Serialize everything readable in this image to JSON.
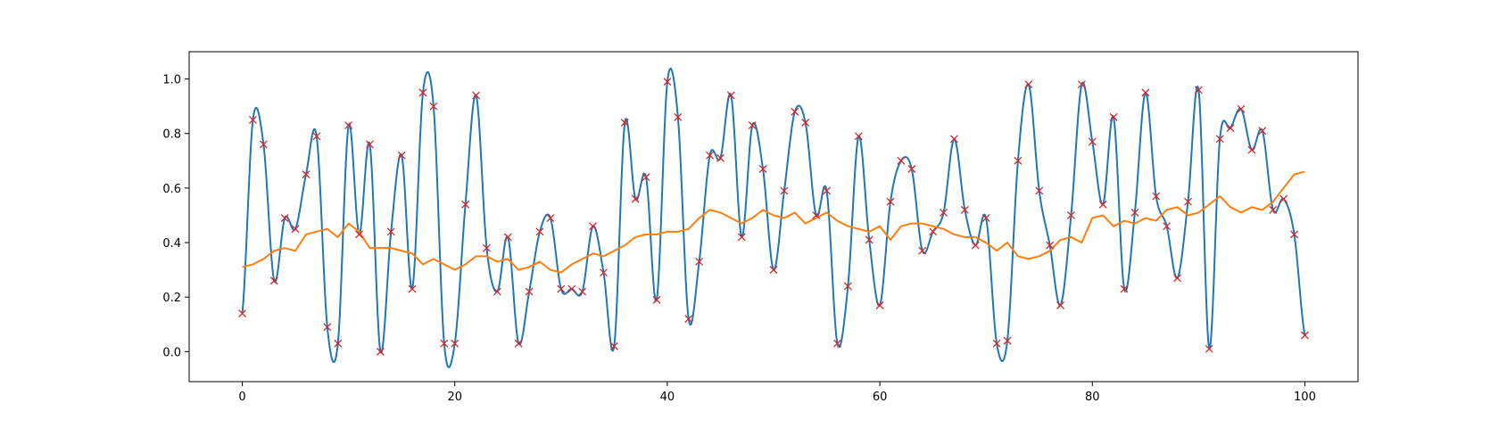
{
  "chart_data": {
    "type": "line",
    "title": "",
    "xlabel": "",
    "ylabel": "",
    "xlim": [
      -5,
      105
    ],
    "ylim": [
      -0.11,
      1.1
    ],
    "xticks": [
      0,
      20,
      40,
      60,
      80,
      100
    ],
    "xtick_labels": [
      "0",
      "20",
      "40",
      "60",
      "80",
      "100"
    ],
    "yticks": [
      0.0,
      0.2,
      0.4,
      0.6,
      0.8,
      1.0
    ],
    "ytick_labels": [
      "0.0",
      "0.2",
      "0.4",
      "0.6",
      "0.8",
      "1.0"
    ],
    "grid": false,
    "legend": "none",
    "colors": {
      "interpolated": "#1f77b4",
      "moving_average": "#ff7f0e",
      "samples": "#d62728"
    },
    "samples": {
      "marker": "x",
      "x": [
        0,
        1,
        2,
        3,
        4,
        5,
        6,
        7,
        8,
        9,
        10,
        11,
        12,
        13,
        14,
        15,
        16,
        17,
        18,
        19,
        20,
        21,
        22,
        23,
        24,
        25,
        26,
        27,
        28,
        29,
        30,
        31,
        32,
        33,
        34,
        35,
        36,
        37,
        38,
        39,
        40,
        41,
        42,
        43,
        44,
        45,
        46,
        47,
        48,
        49,
        50,
        51,
        52,
        53,
        54,
        55,
        56,
        57,
        58,
        59,
        60,
        61,
        62,
        63,
        64,
        65,
        66,
        67,
        68,
        69,
        70,
        71,
        72,
        73,
        74,
        75,
        76,
        77,
        78,
        79,
        80,
        81,
        82,
        83,
        84,
        85,
        86,
        87,
        88,
        89,
        90,
        91,
        92,
        93,
        94,
        95,
        96,
        97,
        98,
        99,
        100
      ],
      "y": [
        0.14,
        0.85,
        0.76,
        0.26,
        0.49,
        0.45,
        0.65,
        0.79,
        0.09,
        0.03,
        0.83,
        0.43,
        0.76,
        0.0,
        0.44,
        0.72,
        0.23,
        0.95,
        0.9,
        0.03,
        0.03,
        0.54,
        0.94,
        0.38,
        0.22,
        0.42,
        0.03,
        0.22,
        0.44,
        0.49,
        0.23,
        0.23,
        0.22,
        0.46,
        0.29,
        0.02,
        0.84,
        0.56,
        0.64,
        0.19,
        0.99,
        0.86,
        0.12,
        0.33,
        0.72,
        0.71,
        0.94,
        0.42,
        0.83,
        0.67,
        0.3,
        0.59,
        0.88,
        0.84,
        0.5,
        0.59,
        0.03,
        0.24,
        0.79,
        0.41,
        0.17,
        0.55,
        0.7,
        0.67,
        0.37,
        0.44,
        0.51,
        0.78,
        0.52,
        0.39,
        0.49,
        0.03,
        0.04,
        0.7,
        0.98,
        0.59,
        0.39,
        0.17,
        0.5,
        0.98,
        0.77,
        0.54,
        0.86,
        0.23,
        0.51,
        0.95,
        0.57,
        0.46,
        0.27,
        0.55,
        0.96,
        0.01,
        0.78,
        0.82,
        0.89,
        0.74,
        0.81,
        0.52,
        0.56,
        0.43,
        0.06
      ]
    },
    "moving_average": {
      "x": [
        0,
        1,
        2,
        3,
        4,
        5,
        6,
        7,
        8,
        9,
        10,
        11,
        12,
        13,
        14,
        15,
        16,
        17,
        18,
        19,
        20,
        21,
        22,
        23,
        24,
        25,
        26,
        27,
        28,
        29,
        30,
        31,
        32,
        33,
        34,
        35,
        36,
        37,
        38,
        39,
        40,
        41,
        42,
        43,
        44,
        45,
        46,
        47,
        48,
        49,
        50,
        51,
        52,
        53,
        54,
        55,
        56,
        57,
        58,
        59,
        60,
        61,
        62,
        63,
        64,
        65,
        66,
        67,
        68,
        69,
        70,
        71,
        72,
        73,
        74,
        75,
        76,
        77,
        78,
        79,
        80,
        81,
        82,
        83,
        84,
        85,
        86,
        87,
        88,
        89,
        90,
        91,
        92,
        93,
        94,
        95,
        96,
        97,
        98,
        99,
        100
      ],
      "y": [
        0.31,
        0.32,
        0.34,
        0.37,
        0.38,
        0.37,
        0.43,
        0.44,
        0.45,
        0.42,
        0.47,
        0.44,
        0.38,
        0.38,
        0.38,
        0.37,
        0.36,
        0.32,
        0.34,
        0.32,
        0.3,
        0.32,
        0.35,
        0.35,
        0.33,
        0.34,
        0.3,
        0.31,
        0.33,
        0.3,
        0.29,
        0.32,
        0.34,
        0.36,
        0.35,
        0.37,
        0.39,
        0.42,
        0.43,
        0.43,
        0.44,
        0.44,
        0.45,
        0.49,
        0.52,
        0.51,
        0.49,
        0.47,
        0.49,
        0.52,
        0.5,
        0.49,
        0.51,
        0.47,
        0.49,
        0.51,
        0.48,
        0.46,
        0.45,
        0.44,
        0.46,
        0.41,
        0.46,
        0.47,
        0.47,
        0.46,
        0.45,
        0.43,
        0.42,
        0.42,
        0.4,
        0.37,
        0.4,
        0.35,
        0.34,
        0.35,
        0.37,
        0.41,
        0.42,
        0.4,
        0.49,
        0.5,
        0.46,
        0.48,
        0.47,
        0.49,
        0.48,
        0.52,
        0.53,
        0.5,
        0.51,
        0.54,
        0.57,
        0.53,
        0.51,
        0.53,
        0.52,
        0.55,
        0.6,
        0.65,
        0.66
      ]
    }
  }
}
